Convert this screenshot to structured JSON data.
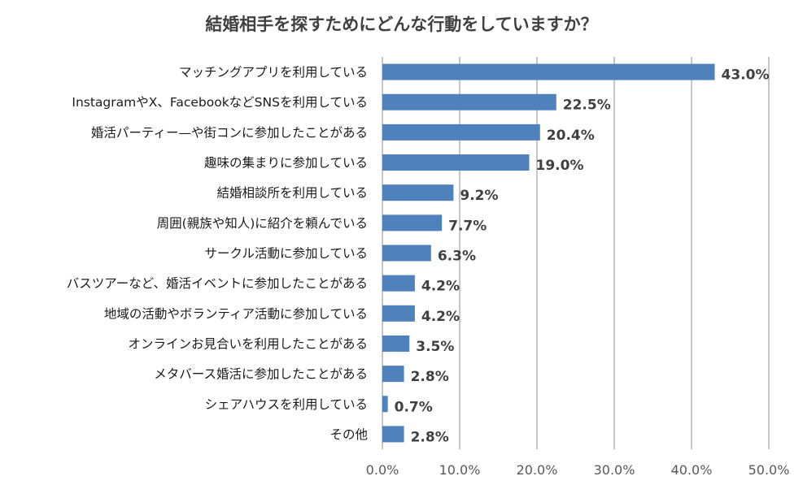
{
  "chart_data": {
    "type": "bar",
    "orientation": "horizontal",
    "title": "結婚相手を探すためにどんな行動をしていますか？",
    "categories": [
      "マッチングアプリを利用している",
      "InstagramやX、FacebookなどSNSを利用している",
      "婚活パーティー—や街コンに参加したことがある",
      "趣味の集まりに参加している",
      "結婚相談所を利用している",
      "周囲(親族や知人)に紹介を頼んでいる",
      "サークル活動に参加している",
      "バスツアーなど、婚活イベントに参加したことがある",
      "地域の活動やボランティア活動に参加している",
      "オンラインお見合いを利用したことがある",
      "メタバース婚活に参加したことがある",
      "シェアハウスを利用している",
      "その他"
    ],
    "values": [
      43.0,
      22.5,
      20.4,
      19.0,
      9.2,
      7.7,
      6.3,
      4.2,
      4.2,
      3.5,
      2.8,
      0.7,
      2.8
    ],
    "value_labels": [
      "43.0%",
      "22.5%",
      "20.4%",
      "19.0%",
      "9.2%",
      "7.7%",
      "6.3%",
      "4.2%",
      "4.2%",
      "3.5%",
      "2.8%",
      "0.7%",
      "2.8%"
    ],
    "x_ticks": [
      0,
      10,
      20,
      30,
      40,
      50
    ],
    "x_tick_labels": [
      "0.0%",
      "10.0%",
      "20.0%",
      "30.0%",
      "40.0%",
      "50.0%"
    ],
    "xlim": [
      0,
      50
    ],
    "xlabel": "",
    "ylabel": "",
    "grid": "vertical",
    "legend": "none",
    "bar_color": "#4f81bd",
    "grid_color": "#8c8c8c"
  }
}
